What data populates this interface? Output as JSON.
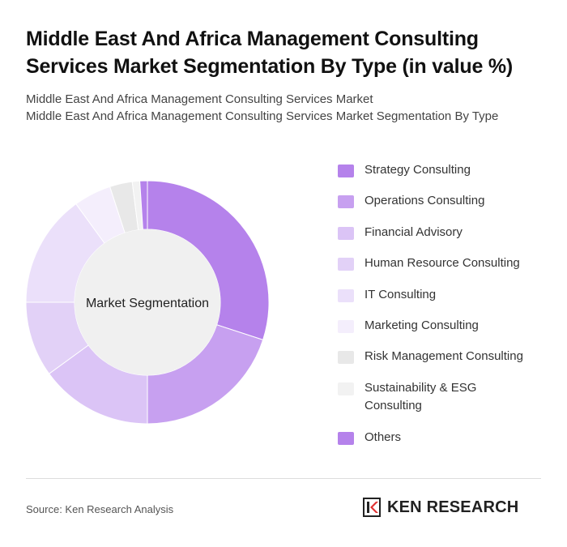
{
  "header": {
    "title_line1": "Middle East And Africa Management Consulting",
    "title_line2": "Services Market Segmentation By Type (in value %)",
    "subtitle_line1": "Middle East And Africa Management Consulting Services Market",
    "subtitle_line2": "Middle East And Africa Management Consulting Services Market Segmentation By Type"
  },
  "chart_data": {
    "type": "pie",
    "variant": "donut",
    "center_label": "Market Segmentation",
    "categories": [
      "Strategy Consulting",
      "Operations Consulting",
      "Financial Advisory",
      "Human Resource Consulting",
      "IT Consulting",
      "Marketing Consulting",
      "Risk Management Consulting",
      "Sustainability & ESG Consulting",
      "Others"
    ],
    "values": [
      30,
      20,
      15,
      10,
      15,
      5,
      3,
      1,
      1
    ],
    "colors": [
      "#b582eb",
      "#c7a0f0",
      "#dbc4f6",
      "#e2d1f7",
      "#ebe0fa",
      "#f4eefc",
      "#e8e8e8",
      "#f2f2f2",
      "#b582eb"
    ],
    "legend_placement": "right"
  },
  "footer": {
    "source": "Source: Ken Research Analysis",
    "brand": "KEN RESEARCH"
  }
}
